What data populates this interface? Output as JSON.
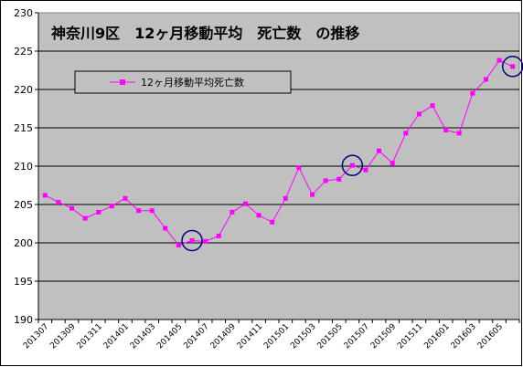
{
  "chart_data": {
    "type": "line",
    "title": "神奈川9区　12ヶ月移動平均　死亡数　の推移",
    "xlabel": "",
    "ylabel": "",
    "ylim": [
      190,
      230
    ],
    "yticks": [
      190,
      195,
      200,
      205,
      210,
      215,
      220,
      225,
      230
    ],
    "grid": true,
    "legend": "top-left",
    "x": [
      "201307",
      "201308",
      "201309",
      "201310",
      "201311",
      "201312",
      "201401",
      "201402",
      "201403",
      "201404",
      "201405",
      "201406",
      "201407",
      "201408",
      "201409",
      "201410",
      "201411",
      "201412",
      "201501",
      "201502",
      "201503",
      "201504",
      "201505",
      "201506",
      "201507",
      "201508",
      "201509",
      "201510",
      "201511",
      "201512",
      "201601",
      "201602",
      "201603",
      "201604",
      "201605",
      "201606"
    ],
    "x_tick_labels": [
      "201307",
      "201309",
      "201311",
      "201401",
      "201403",
      "201405",
      "201407",
      "201409",
      "201411",
      "201501",
      "201503",
      "201505",
      "201507",
      "201509",
      "201511",
      "201601",
      "201603",
      "201605"
    ],
    "series": [
      {
        "name": "12ヶ月移動平均死亡数",
        "color": "#ff00ff",
        "values": [
          206.2,
          205.3,
          204.5,
          203.2,
          204.0,
          204.8,
          205.8,
          204.2,
          204.2,
          201.9,
          199.7,
          200.3,
          200.2,
          200.9,
          204.0,
          205.1,
          203.6,
          202.7,
          205.8,
          209.8,
          206.3,
          208.1,
          208.3,
          210.1,
          209.5,
          212.0,
          210.4,
          214.3,
          216.8,
          217.9,
          214.7,
          214.3,
          219.5,
          221.3,
          223.8,
          223.0
        ]
      }
    ],
    "highlight_indices": [
      11,
      23,
      35
    ],
    "colors": {
      "plot_background": "#c0c0c0",
      "line": "#ff00ff",
      "circle": "#000080",
      "grid": "#000000"
    }
  }
}
